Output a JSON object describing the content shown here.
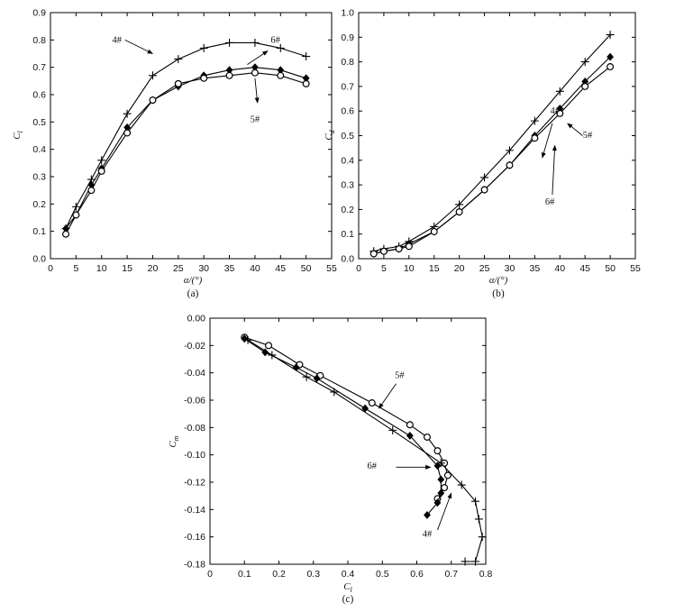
{
  "chart_data": [
    {
      "id": "a",
      "type": "line",
      "caption": "(a)",
      "xlabel": "α/(°)",
      "ylabel": "C_l",
      "xlim": [
        0,
        55
      ],
      "ylim": [
        0,
        0.9
      ],
      "xticks": [
        0,
        5,
        10,
        15,
        20,
        25,
        30,
        35,
        40,
        45,
        50,
        55
      ],
      "yticks": [
        0,
        0.1,
        0.2,
        0.3,
        0.4,
        0.5,
        0.6,
        0.7,
        0.8,
        0.9
      ],
      "tick_decimals_y": 1,
      "series": [
        {
          "name": "4#",
          "marker": "plus",
          "x": [
            3,
            5,
            8,
            10,
            15,
            20,
            25,
            30,
            35,
            40,
            45,
            50
          ],
          "y": [
            0.11,
            0.19,
            0.29,
            0.36,
            0.53,
            0.67,
            0.73,
            0.77,
            0.79,
            0.79,
            0.77,
            0.74
          ]
        },
        {
          "name": "6#",
          "marker": "diamond",
          "x": [
            3,
            5,
            8,
            10,
            15,
            20,
            25,
            30,
            35,
            40,
            45,
            50
          ],
          "y": [
            0.11,
            0.16,
            0.27,
            0.33,
            0.48,
            0.58,
            0.63,
            0.67,
            0.69,
            0.7,
            0.69,
            0.66
          ]
        },
        {
          "name": "5#",
          "marker": "circle",
          "x": [
            3,
            5,
            8,
            10,
            15,
            20,
            25,
            30,
            35,
            40,
            45,
            50
          ],
          "y": [
            0.09,
            0.16,
            0.25,
            0.32,
            0.46,
            0.58,
            0.64,
            0.66,
            0.67,
            0.68,
            0.67,
            0.64
          ]
        }
      ],
      "annotations": [
        {
          "text": "4#",
          "at": [
            13,
            0.79
          ],
          "arrow_to": [
            20,
            0.75
          ]
        },
        {
          "text": "6#",
          "at": [
            44,
            0.79
          ],
          "arrow_from": [
            38.5,
            0.71
          ],
          "arrow_to": [
            42.5,
            0.76
          ]
        },
        {
          "text": "5#",
          "at": [
            40,
            0.5
          ],
          "arrow_from": [
            40,
            0.66
          ],
          "arrow_to": [
            40.5,
            0.57
          ]
        }
      ]
    },
    {
      "id": "b",
      "type": "line",
      "caption": "(b)",
      "xlabel": "α/(°)",
      "ylabel": "C_d",
      "xlim": [
        0,
        55
      ],
      "ylim": [
        0,
        1.0
      ],
      "xticks": [
        0,
        5,
        10,
        15,
        20,
        25,
        30,
        35,
        40,
        45,
        50,
        55
      ],
      "yticks": [
        0,
        0.1,
        0.2,
        0.3,
        0.4,
        0.5,
        0.6,
        0.7,
        0.8,
        0.9,
        1.0
      ],
      "tick_decimals_y": 1,
      "series": [
        {
          "name": "4#",
          "marker": "plus",
          "x": [
            3,
            5,
            8,
            10,
            15,
            20,
            25,
            30,
            35,
            40,
            45,
            50
          ],
          "y": [
            0.03,
            0.04,
            0.05,
            0.07,
            0.13,
            0.22,
            0.33,
            0.44,
            0.56,
            0.68,
            0.8,
            0.91
          ]
        },
        {
          "name": "6#",
          "marker": "diamond",
          "x": [
            3,
            5,
            8,
            10,
            15,
            20,
            25,
            30,
            35,
            40,
            45,
            50
          ],
          "y": [
            0.02,
            0.03,
            0.04,
            0.06,
            0.11,
            0.19,
            0.28,
            0.38,
            0.5,
            0.61,
            0.72,
            0.82
          ]
        },
        {
          "name": "5#",
          "marker": "circle",
          "x": [
            3,
            5,
            8,
            10,
            15,
            20,
            25,
            30,
            35,
            40,
            45,
            50
          ],
          "y": [
            0.02,
            0.03,
            0.04,
            0.05,
            0.11,
            0.19,
            0.28,
            0.38,
            0.49,
            0.59,
            0.7,
            0.78
          ]
        }
      ],
      "annotations": [
        {
          "text": "4#",
          "at": [
            39,
            0.59
          ],
          "arrow_from": [
            38.5,
            0.55
          ],
          "arrow_to": [
            36.5,
            0.41
          ]
        },
        {
          "text": "5#",
          "at": [
            45.5,
            0.49
          ],
          "arrow_from": [
            44.5,
            0.5
          ],
          "arrow_to": [
            41.5,
            0.55
          ]
        },
        {
          "text": "6#",
          "at": [
            38,
            0.22
          ],
          "arrow_from": [
            38.5,
            0.26
          ],
          "arrow_to": [
            39,
            0.46
          ]
        }
      ]
    },
    {
      "id": "c",
      "type": "line",
      "caption": "(c)",
      "xlabel": "C_l",
      "ylabel": "C_m",
      "xlim": [
        0,
        0.8
      ],
      "ylim": [
        -0.18,
        0
      ],
      "xticks": [
        0,
        0.1,
        0.2,
        0.3,
        0.4,
        0.5,
        0.6,
        0.7,
        0.8
      ],
      "yticks": [
        0,
        -0.02,
        -0.04,
        -0.06,
        -0.08,
        -0.1,
        -0.12,
        -0.14,
        -0.16,
        -0.18
      ],
      "tick_decimals_y": 2,
      "series": [
        {
          "name": "5#",
          "marker": "circle",
          "x": [
            0.1,
            0.17,
            0.26,
            0.32,
            0.47,
            0.58,
            0.63,
            0.66,
            0.68,
            0.69,
            0.68,
            0.66
          ],
          "y": [
            -0.014,
            -0.02,
            -0.034,
            -0.042,
            -0.062,
            -0.078,
            -0.087,
            -0.097,
            -0.106,
            -0.115,
            -0.124,
            -0.132
          ]
        },
        {
          "name": "6#",
          "marker": "diamond",
          "x": [
            0.1,
            0.16,
            0.25,
            0.31,
            0.45,
            0.58,
            0.66,
            0.67,
            0.67,
            0.66,
            0.63
          ],
          "y": [
            -0.015,
            -0.025,
            -0.036,
            -0.044,
            -0.066,
            -0.086,
            -0.108,
            -0.118,
            -0.128,
            -0.135,
            -0.144
          ]
        },
        {
          "name": "4#",
          "marker": "plus",
          "x": [
            0.11,
            0.18,
            0.28,
            0.36,
            0.53,
            0.67,
            0.73,
            0.77,
            0.78,
            0.79,
            0.77,
            0.74
          ],
          "y": [
            -0.016,
            -0.027,
            -0.043,
            -0.054,
            -0.082,
            -0.106,
            -0.122,
            -0.134,
            -0.147,
            -0.16,
            -0.178,
            -0.178
          ]
        }
      ],
      "annotations": [
        {
          "text": "5#",
          "at": [
            0.55,
            -0.044
          ],
          "arrow_from": [
            0.54,
            -0.048
          ],
          "arrow_to": [
            0.49,
            -0.066
          ]
        },
        {
          "text": "6#",
          "at": [
            0.47,
            -0.11
          ],
          "arrow_from": [
            0.54,
            -0.109
          ],
          "arrow_to": [
            0.64,
            -0.109
          ]
        },
        {
          "text": "4#",
          "at": [
            0.63,
            -0.16
          ],
          "arrow_from": [
            0.66,
            -0.155
          ],
          "arrow_to": [
            0.7,
            -0.128
          ]
        }
      ]
    }
  ]
}
